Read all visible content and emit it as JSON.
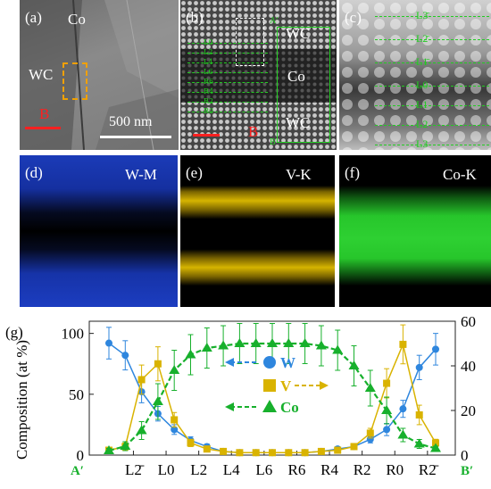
{
  "panels": {
    "a": {
      "label": "(a)",
      "phase_co": "Co",
      "phase_wc": "WC",
      "marker": "B",
      "scale": "500 nm"
    },
    "b": {
      "label": "(b)",
      "top_mark": "A′",
      "bottom_mark": "B",
      "wc_top": "WC",
      "co": "Co",
      "wc_bottom": "WC",
      "layers": [
        "L0",
        "L2",
        "L4",
        "L6",
        "R6",
        "R4",
        "R2",
        "R0"
      ]
    },
    "c": {
      "label": "(c)",
      "layers": [
        "L3̄",
        "L2̄",
        "L1̄",
        "L0",
        "L1",
        "L2",
        "L3"
      ]
    },
    "d": {
      "label": "(d)",
      "element": "W-M",
      "color": "#1f49d8"
    },
    "e": {
      "label": "(e)",
      "element": "V-K",
      "color": "#d6b400"
    },
    "f": {
      "label": "(f)",
      "element": "Co-K",
      "color": "#27c62b"
    },
    "g": {
      "label": "(g)"
    }
  },
  "chart_data": {
    "type": "line",
    "ylabel": "Composition (at %)",
    "ylim_left": [
      0,
      110
    ],
    "ylim_right": [
      0,
      60
    ],
    "yticks_left": [
      0,
      50,
      100
    ],
    "yticks_right": [
      0,
      20,
      40,
      60
    ],
    "endpoints": [
      "A′",
      "B′"
    ],
    "categories": [
      "L2̄",
      "L0",
      "L2",
      "L4",
      "L6",
      "R6",
      "R4",
      "R2",
      "R0",
      "R2̄"
    ],
    "series": [
      {
        "name": "W",
        "axis": "left",
        "color": "#2e86de",
        "marker": "circle",
        "x": [
          0,
          1,
          2,
          3,
          4,
          5,
          6,
          7,
          8,
          9,
          10,
          11,
          12,
          13,
          14,
          15,
          16,
          17,
          18,
          19,
          20
        ],
        "values": [
          92,
          82,
          52,
          34,
          21,
          12,
          7,
          3,
          2,
          2,
          2,
          2,
          2,
          3,
          5,
          7,
          13,
          21,
          38,
          72,
          87
        ],
        "errors": [
          13,
          12,
          9,
          6,
          4,
          3,
          2,
          2,
          1,
          1,
          1,
          1,
          1,
          1,
          2,
          2,
          3,
          5,
          7,
          10,
          13
        ]
      },
      {
        "name": "V",
        "axis": "left",
        "color": "#d9b300",
        "marker": "square",
        "x": [
          0,
          1,
          2,
          3,
          4,
          5,
          6,
          7,
          8,
          9,
          10,
          11,
          12,
          13,
          14,
          15,
          16,
          17,
          18,
          19,
          20
        ],
        "values": [
          4,
          7,
          62,
          75,
          29,
          10,
          5,
          3,
          2,
          2,
          2,
          2,
          2,
          3,
          4,
          7,
          18,
          59,
          91,
          33,
          10
        ],
        "errors": [
          2,
          3,
          12,
          14,
          6,
          3,
          2,
          1,
          1,
          1,
          1,
          1,
          1,
          1,
          1,
          2,
          4,
          12,
          16,
          8,
          3
        ]
      },
      {
        "name": "Co",
        "axis": "right",
        "color": "#17b02c",
        "marker": "triangle",
        "x": [
          0,
          1,
          2,
          3,
          4,
          5,
          6,
          7,
          8,
          9,
          10,
          11,
          12,
          13,
          14,
          15,
          16,
          17,
          18,
          19,
          20
        ],
        "values": [
          2,
          4,
          11,
          24,
          38,
          45,
          48,
          49,
          50,
          50,
          50,
          50,
          50,
          49,
          47,
          40,
          30,
          20,
          9,
          5,
          3
        ],
        "errors": [
          1,
          2,
          4,
          8,
          9,
          9,
          9,
          9,
          9,
          9,
          9,
          9,
          9,
          9,
          9,
          9,
          8,
          6,
          3,
          2,
          1
        ]
      }
    ]
  }
}
